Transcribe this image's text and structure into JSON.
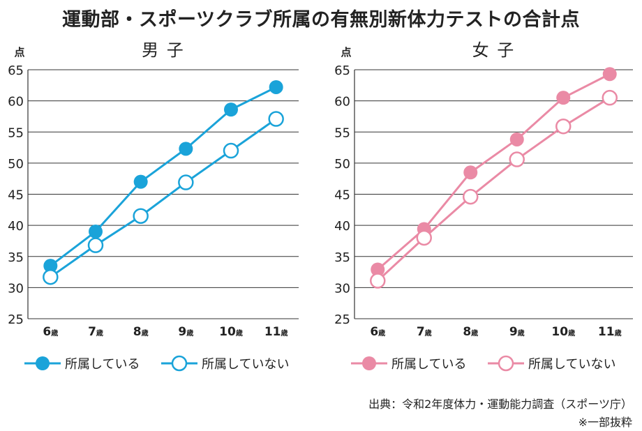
{
  "title": "運動部・スポーツクラブ所属の有無別新体力テストの合計点",
  "source": "出典：令和2年度体力・運動能力調査（スポーツ庁）",
  "note": "※一部抜粋",
  "chart_data": [
    {
      "type": "line",
      "title": "男 子",
      "ylabel": "点",
      "ylim": [
        25,
        65
      ],
      "yticks": [
        25,
        30,
        35,
        40,
        45,
        50,
        55,
        60,
        65
      ],
      "x": [
        "6",
        "7",
        "8",
        "9",
        "10",
        "11"
      ],
      "x_unit": "歳",
      "color": "#1aa3d9",
      "grid": true,
      "series": [
        {
          "name": "所属している",
          "marker": "filled",
          "values": [
            33.5,
            39.0,
            47.0,
            52.3,
            58.6,
            62.2
          ]
        },
        {
          "name": "所属していない",
          "marker": "hollow",
          "values": [
            31.7,
            36.8,
            41.5,
            46.9,
            52.0,
            57.1
          ]
        }
      ]
    },
    {
      "type": "line",
      "title": "女 子",
      "ylabel": "点",
      "ylim": [
        25,
        65
      ],
      "yticks": [
        25,
        30,
        35,
        40,
        45,
        50,
        55,
        60,
        65
      ],
      "x": [
        "6",
        "7",
        "8",
        "9",
        "10",
        "11"
      ],
      "x_unit": "歳",
      "color": "#ea8aa5",
      "grid": true,
      "series": [
        {
          "name": "所属している",
          "marker": "filled",
          "values": [
            32.9,
            39.4,
            48.5,
            53.8,
            60.5,
            64.3
          ]
        },
        {
          "name": "所属していない",
          "marker": "hollow",
          "values": [
            31.1,
            38.0,
            44.6,
            50.6,
            55.9,
            60.5
          ]
        }
      ]
    }
  ]
}
